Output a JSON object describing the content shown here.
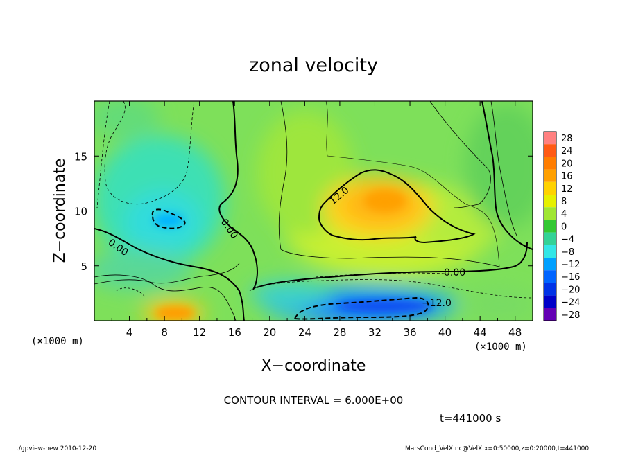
{
  "chart_data": {
    "type": "heatmap",
    "title": "zonal velocity",
    "xlabel": "X−coordinate",
    "ylabel": "Z−coordinate",
    "x_unit_left": "(×1000 m)",
    "x_unit_right": "(×1000 m)",
    "xlim": [
      0,
      50
    ],
    "ylim": [
      0,
      20
    ],
    "x_ticks": [
      4,
      8,
      12,
      16,
      20,
      24,
      28,
      32,
      36,
      40,
      44,
      48
    ],
    "y_ticks": [
      5,
      10,
      15
    ],
    "colorbar": {
      "levels": [
        28,
        24,
        20,
        16,
        12,
        8,
        4,
        0,
        -4,
        -8,
        -12,
        -16,
        -20,
        -24,
        -28
      ],
      "labels": [
        "28",
        "24",
        "20",
        "16",
        "12",
        "8",
        "4",
        "0",
        "−4",
        "−8",
        "−12",
        "−16",
        "−20",
        "−24",
        "−28"
      ],
      "colors": [
        "#ff8080",
        "#ff5a14",
        "#ff7d00",
        "#ffa000",
        "#ffd200",
        "#e6f000",
        "#a0e632",
        "#32c832",
        "#32d296",
        "#32e6e6",
        "#00a0ff",
        "#0064ff",
        "#0032e6",
        "#0000c8",
        "#6400b4"
      ]
    },
    "contour_labels": [
      "12.0",
      "0.00",
      "0.00",
      "0.00",
      "−12.0"
    ],
    "contour_interval": 6.0
  },
  "annotations": {
    "contour_interval_text": "CONTOUR INTERVAL = 6.000E+00",
    "time_text": "t=441000 s",
    "footer_left": "./gpview-new   2010-12-20",
    "footer_right": "MarsCond_VelX.nc@VelX,x=0:50000,z=0:20000,t=441000"
  }
}
